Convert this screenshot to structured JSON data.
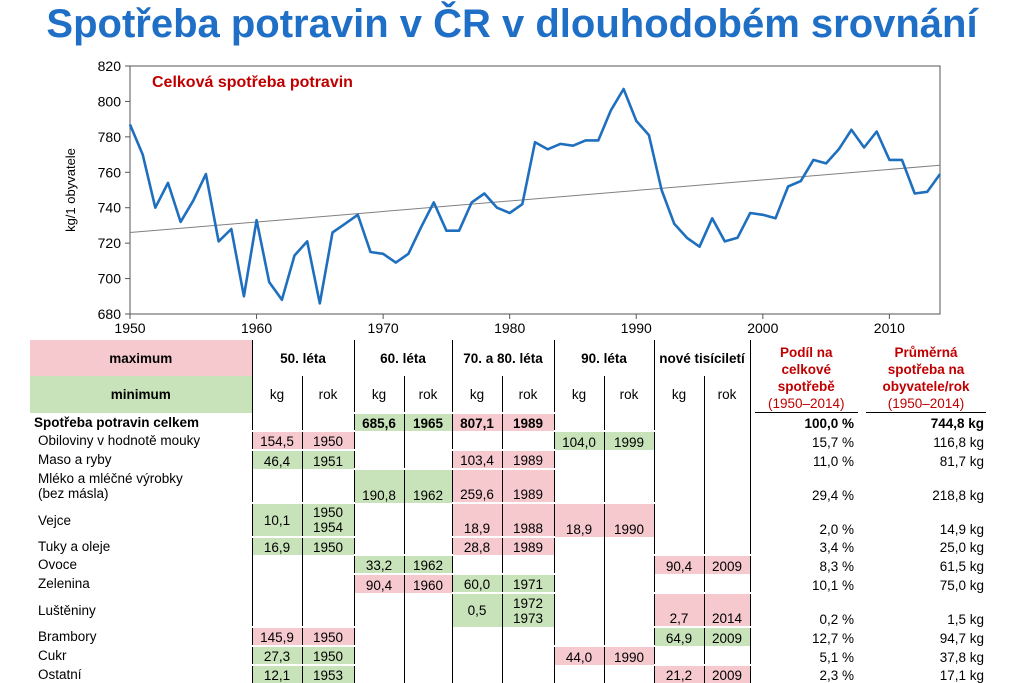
{
  "title": "Spotřeba potravin v ČR v dlouhodobém srovnání",
  "chart_data": {
    "type": "line",
    "title": "Celková spotřeba potravin",
    "ylabel": "kg/1 obyvatele",
    "xlabel": "",
    "xlim": [
      1950,
      2014
    ],
    "ylim": [
      680,
      820
    ],
    "xticks": [
      1950,
      1960,
      1970,
      1980,
      1990,
      2000,
      2010
    ],
    "yticks": [
      680,
      700,
      720,
      740,
      760,
      780,
      800,
      820
    ],
    "grid": false,
    "colors": {
      "series": "#1f6fbf",
      "trend": "#808080",
      "title": "#c00000"
    },
    "x": [
      1950,
      1951,
      1952,
      1953,
      1954,
      1955,
      1956,
      1957,
      1958,
      1959,
      1960,
      1961,
      1962,
      1963,
      1964,
      1965,
      1966,
      1967,
      1968,
      1969,
      1970,
      1971,
      1972,
      1973,
      1974,
      1975,
      1976,
      1977,
      1978,
      1979,
      1980,
      1981,
      1982,
      1983,
      1984,
      1985,
      1986,
      1987,
      1988,
      1989,
      1990,
      1991,
      1992,
      1993,
      1994,
      1995,
      1996,
      1997,
      1998,
      1999,
      2000,
      2001,
      2002,
      2003,
      2004,
      2005,
      2006,
      2007,
      2008,
      2009,
      2010,
      2011,
      2012,
      2013,
      2014
    ],
    "series": [
      {
        "name": "",
        "values": [
          787,
          770,
          740,
          754,
          732,
          744,
          759,
          721,
          728,
          690,
          733,
          698,
          688,
          713,
          721,
          686,
          726,
          731,
          736,
          715,
          714,
          709,
          714,
          729,
          743,
          727,
          727,
          743,
          748,
          740,
          737,
          742,
          777,
          773,
          776,
          775,
          778,
          778,
          795,
          807,
          789,
          781,
          750,
          731,
          723,
          718,
          734,
          721,
          723,
          737,
          736,
          734,
          752,
          755,
          767,
          765,
          773,
          784,
          774,
          783,
          767,
          767,
          748,
          749,
          759
        ]
      },
      {
        "name": "",
        "kind": "trend",
        "values": [
          726,
          764
        ],
        "x": [
          1950,
          2014
        ]
      }
    ]
  },
  "table": {
    "legend_max": "maximum",
    "legend_min": "minimum",
    "periods": [
      "50. léta",
      "60. léta",
      "70. a 80. léta",
      "90. léta",
      "nové tisíciletí"
    ],
    "sub_kg": "kg",
    "sub_rok": "rok",
    "share_header": "Podíl na celkové spotřebě",
    "share_years": "(1950–2014)",
    "avg_header": "Průměrná spotřeba na obyvatele/rok",
    "avg_years": "(1950–2014)",
    "rows": [
      {
        "label": "Spotřeba potravin celkem",
        "bold": true,
        "cells": [
          [
            "",
            ""
          ],
          [
            "685,6",
            "1965",
            "g"
          ],
          [
            "807,1",
            "1989",
            "p"
          ],
          [
            "",
            ""
          ],
          [
            "",
            ""
          ]
        ],
        "share": "100,0 %",
        "avg": "744,8 kg"
      },
      {
        "label": "Obiloviny v hodnotě mouky",
        "cells": [
          [
            "154,5",
            "1950",
            "p"
          ],
          [
            "",
            ""
          ],
          [
            "",
            ""
          ],
          [
            "104,0",
            "1999",
            "g"
          ],
          [
            "",
            ""
          ]
        ],
        "share": "15,7 %",
        "avg": "116,8 kg"
      },
      {
        "label": "Maso a ryby",
        "cells": [
          [
            "46,4",
            "1951",
            "g"
          ],
          [
            "",
            ""
          ],
          [
            "103,4",
            "1989",
            "p"
          ],
          [
            "",
            ""
          ],
          [
            "",
            ""
          ]
        ],
        "share": "11,0 %",
        "avg": "81,7 kg"
      },
      {
        "label": "Mléko a mléčné výrobky",
        "label2": "(bez másla)",
        "cells": [
          [
            "",
            ""
          ],
          [
            "190,8",
            "1962",
            "g"
          ],
          [
            "259,6",
            "1989",
            "p"
          ],
          [
            "",
            ""
          ],
          [
            "",
            ""
          ]
        ],
        "share": "29,4 %",
        "avg": "218,8 kg"
      },
      {
        "label": "Vejce",
        "cells": [
          [
            "10,1",
            "1950",
            "g",
            "1954"
          ],
          [
            "",
            ""
          ],
          [
            "18,9",
            "1988",
            "p"
          ],
          [
            "18,9",
            "1990",
            "p"
          ],
          [
            "",
            ""
          ]
        ],
        "share": "2,0 %",
        "avg": "14,9 kg"
      },
      {
        "label": "Tuky a oleje",
        "cells": [
          [
            "16,9",
            "1950",
            "g"
          ],
          [
            "",
            ""
          ],
          [
            "28,8",
            "1989",
            "p"
          ],
          [
            "",
            ""
          ],
          [
            "",
            ""
          ]
        ],
        "share": "3,4 %",
        "avg": "25,0 kg"
      },
      {
        "label": "Ovoce",
        "cells": [
          [
            "",
            ""
          ],
          [
            "33,2",
            "1962",
            "g"
          ],
          [
            "",
            ""
          ],
          [
            "",
            ""
          ],
          [
            "90,4",
            "2009",
            "p"
          ]
        ],
        "share": "8,3 %",
        "avg": "61,5 kg"
      },
      {
        "label": "Zelenina",
        "cells": [
          [
            "",
            ""
          ],
          [
            "90,4",
            "1960",
            "p"
          ],
          [
            "60,0",
            "1971",
            "g"
          ],
          [
            "",
            ""
          ],
          [
            "",
            ""
          ]
        ],
        "share": "10,1 %",
        "avg": "75,0 kg"
      },
      {
        "label": "Luštěniny",
        "cells": [
          [
            "",
            ""
          ],
          [
            "",
            ""
          ],
          [
            "0,5",
            "1972",
            "g",
            "1973"
          ],
          [
            "",
            ""
          ],
          [
            "2,7",
            "2014",
            "p"
          ]
        ],
        "share": "0,2 %",
        "avg": "1,5 kg"
      },
      {
        "label": "Brambory",
        "cells": [
          [
            "145,9",
            "1950",
            "p"
          ],
          [
            "",
            ""
          ],
          [
            "",
            ""
          ],
          [
            "",
            ""
          ],
          [
            "64,9",
            "2009",
            "g"
          ]
        ],
        "share": "12,7 %",
        "avg": "94,7 kg"
      },
      {
        "label": "Cukr",
        "cells": [
          [
            "27,3",
            "1950",
            "g"
          ],
          [
            "",
            ""
          ],
          [
            "",
            ""
          ],
          [
            "44,0",
            "1990",
            "p"
          ],
          [
            "",
            ""
          ]
        ],
        "share": "5,1 %",
        "avg": "37,8 kg"
      },
      {
        "label": "Ostatní",
        "cells": [
          [
            "12,1",
            "1953",
            "g"
          ],
          [
            "",
            ""
          ],
          [
            "",
            ""
          ],
          [
            "",
            ""
          ],
          [
            "21,2",
            "2009",
            "p"
          ]
        ],
        "share": "2,3 %",
        "avg": "17,1 kg"
      }
    ]
  }
}
